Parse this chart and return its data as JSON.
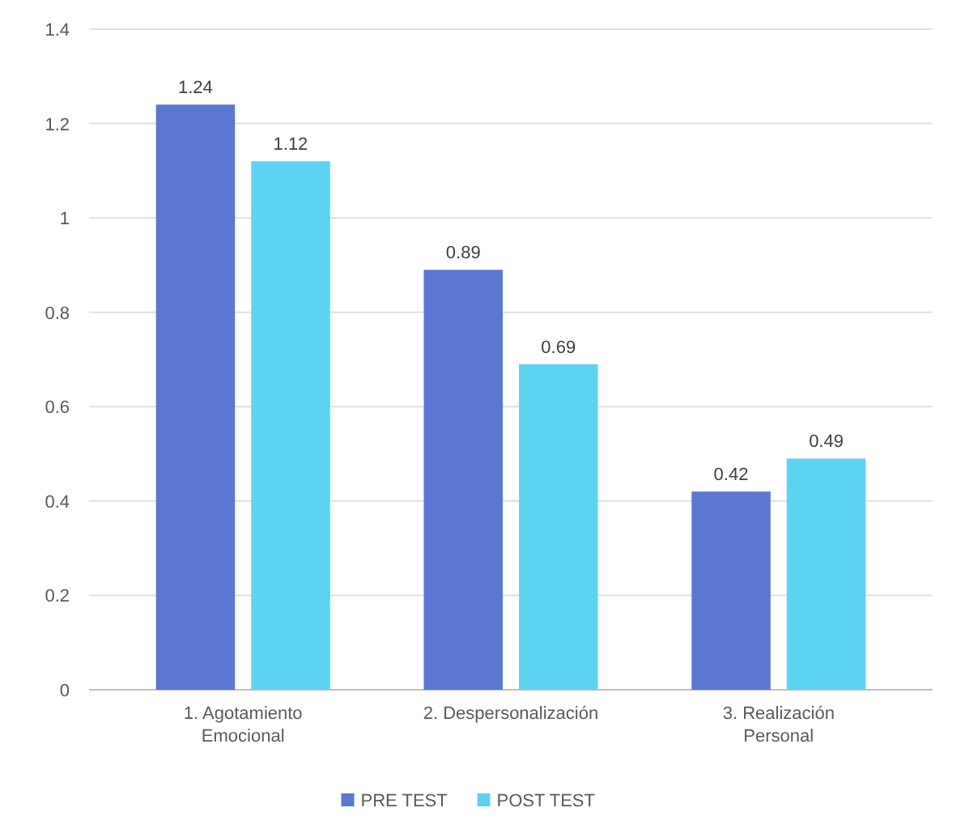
{
  "chart_data": {
    "type": "bar",
    "categories": [
      "1. Agotamiento Emocional",
      "2. Despersonalización",
      "3. Realización Personal"
    ],
    "series": [
      {
        "name": "PRE TEST",
        "color": "#5a78d2",
        "values": [
          1.24,
          0.89,
          0.42
        ]
      },
      {
        "name": "POST TEST",
        "color": "#5dd3f3",
        "values": [
          1.12,
          0.69,
          0.49
        ]
      }
    ],
    "ylim": [
      0,
      1.4
    ],
    "yticks": [
      0,
      {
        "value": 0.2,
        "label": "0.2"
      },
      {
        "value": 0.4,
        "label": "0.4"
      },
      {
        "value": 0.6,
        "label": "0.6"
      },
      {
        "value": 0.8,
        "label": "0.8"
      },
      1,
      {
        "value": 1.2,
        "label": "1.2"
      },
      {
        "value": 1.4,
        "label": "1.4"
      }
    ],
    "grid": "y",
    "legend": "bottom",
    "data_labels": true
  }
}
